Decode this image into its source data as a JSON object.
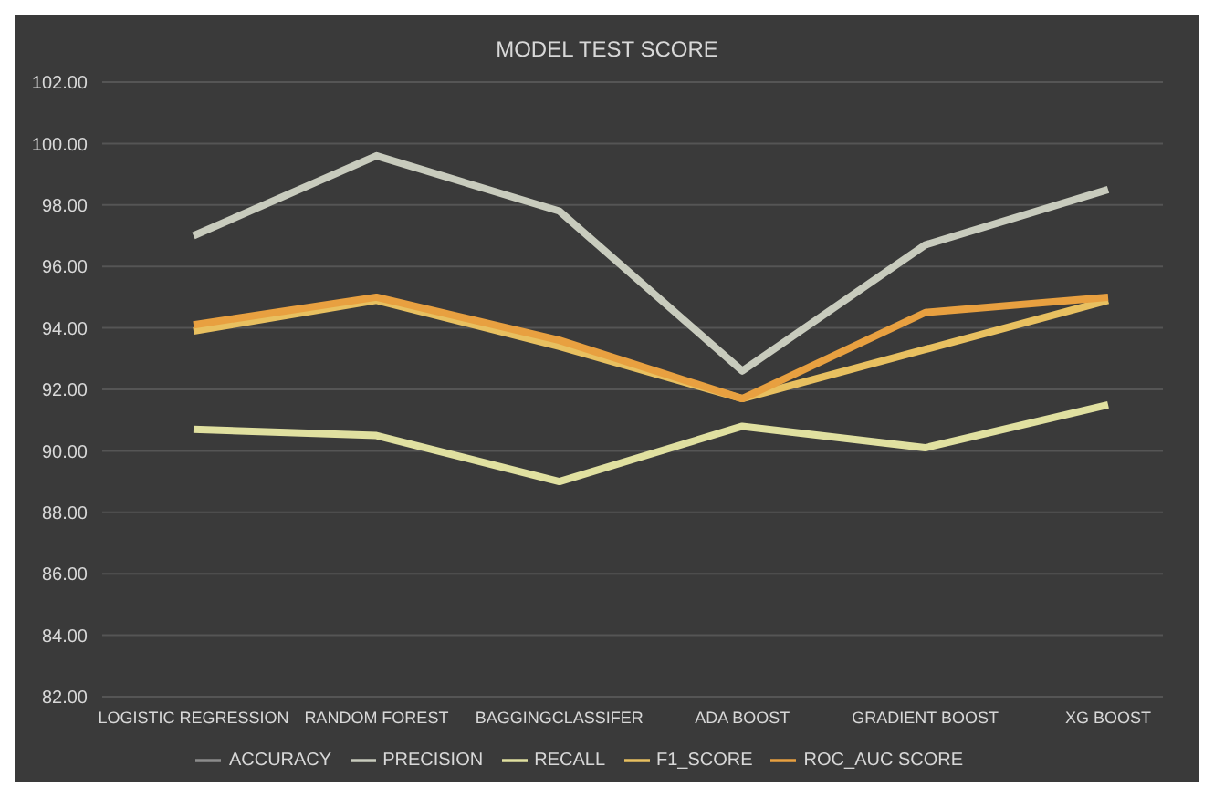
{
  "chart_data": {
    "type": "line",
    "title": "MODEL TEST SCORE",
    "categories": [
      "LOGISTIC REGRESSION",
      "RANDOM FOREST",
      "BAGGINGCLASSIFER",
      "ADA BOOST",
      "GRADIENT BOOST",
      "XG BOOST"
    ],
    "series": [
      {
        "name": "ACCURACY",
        "color": "#8c8c8c",
        "values": [
          null,
          null,
          null,
          null,
          null,
          null
        ]
      },
      {
        "name": "PRECISION",
        "color": "#c8cbbd",
        "values": [
          97.0,
          99.6,
          97.8,
          92.6,
          96.7,
          98.5
        ]
      },
      {
        "name": "RECALL",
        "color": "#e0e0a0",
        "values": [
          90.7,
          90.5,
          89.0,
          90.8,
          90.1,
          91.5
        ]
      },
      {
        "name": "F1_SCORE",
        "color": "#e8c060",
        "values": [
          93.9,
          94.9,
          93.4,
          91.7,
          93.3,
          94.9
        ]
      },
      {
        "name": "ROC_AUC SCORE",
        "color": "#e8a040",
        "values": [
          94.1,
          95.0,
          93.6,
          91.7,
          94.5,
          95.0
        ]
      }
    ],
    "ylim": [
      82,
      102
    ],
    "yticks": [
      {
        "value": 82,
        "label": "82.00"
      },
      {
        "value": 84,
        "label": "84.00"
      },
      {
        "value": 86,
        "label": "86.00"
      },
      {
        "value": 88,
        "label": "88.00"
      },
      {
        "value": 90,
        "label": "90.00"
      },
      {
        "value": 92,
        "label": "92.00"
      },
      {
        "value": 94,
        "label": "94.00"
      },
      {
        "value": 96,
        "label": "96.00"
      },
      {
        "value": 98,
        "label": "98.00"
      },
      {
        "value": 100,
        "label": "100.00"
      },
      {
        "value": 102,
        "label": "102.00"
      }
    ],
    "grid": "y",
    "legend": "bottom",
    "marker": "none",
    "line_style": "solid"
  }
}
